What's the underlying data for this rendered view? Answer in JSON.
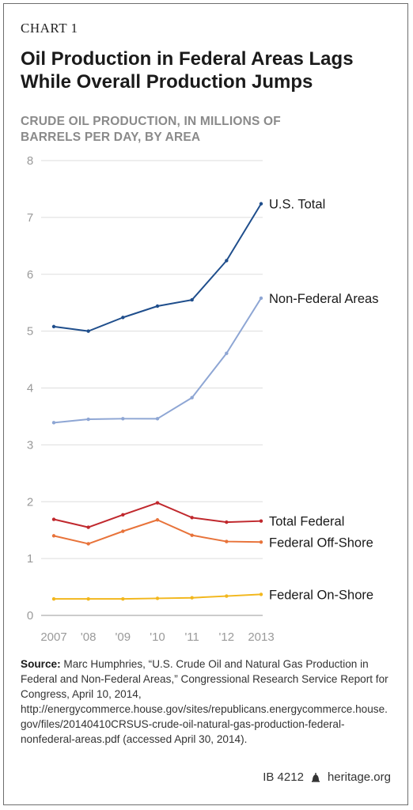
{
  "header": {
    "kicker": "CHART 1",
    "title": "Oil Production in Federal Areas Lags While Overall Production Jumps",
    "subtitle": "CRUDE OIL PRODUCTION, IN MILLIONS OF BARRELS PER DAY, BY AREA"
  },
  "chart_data": {
    "type": "line",
    "title": "Oil Production in Federal Areas Lags While Overall Production Jumps",
    "ylabel": "CRUDE OIL PRODUCTION, IN MILLIONS OF BARRELS PER DAY, BY AREA",
    "categories": [
      "2007",
      "'08",
      "'09",
      "'10",
      "'11",
      "'12",
      "2013"
    ],
    "ylim": [
      0,
      8
    ],
    "yticks": [
      0,
      1,
      2,
      3,
      4,
      5,
      6,
      7,
      8
    ],
    "grid": true,
    "series": [
      {
        "name": "U.S. Total",
        "color": "#1f4e8c",
        "values": [
          5.08,
          5.0,
          5.24,
          5.44,
          5.55,
          6.24,
          7.24
        ]
      },
      {
        "name": "Non-Federal Areas",
        "color": "#8ea6d4",
        "values": [
          3.39,
          3.45,
          3.46,
          3.46,
          3.83,
          4.61,
          5.58
        ]
      },
      {
        "name": "Total Federal",
        "color": "#c0282d",
        "values": [
          1.69,
          1.55,
          1.77,
          1.98,
          1.72,
          1.64,
          1.66
        ]
      },
      {
        "name": "Federal Off-Shore",
        "color": "#e8733a",
        "values": [
          1.4,
          1.26,
          1.48,
          1.68,
          1.41,
          1.3,
          1.29
        ]
      },
      {
        "name": "Federal On-Shore",
        "color": "#f2b71d",
        "values": [
          0.29,
          0.29,
          0.29,
          0.3,
          0.31,
          0.34,
          0.37
        ]
      }
    ]
  },
  "source": {
    "label": "Source:",
    "text": "Marc Humphries, “U.S. Crude Oil and Natural Gas Production in Federal and Non-Federal Areas,” Congressional Research Service Report for Congress, April 10, 2014, http://energycommerce.house.gov/sites/republicans.energycommerce.house.gov/files/20140410CRSUS-crude-oil-natural-gas-production-federal-nonfederal-areas.pdf (accessed April 30, 2014)."
  },
  "footer": {
    "id": "IB 4212",
    "site": "heritage.org"
  }
}
